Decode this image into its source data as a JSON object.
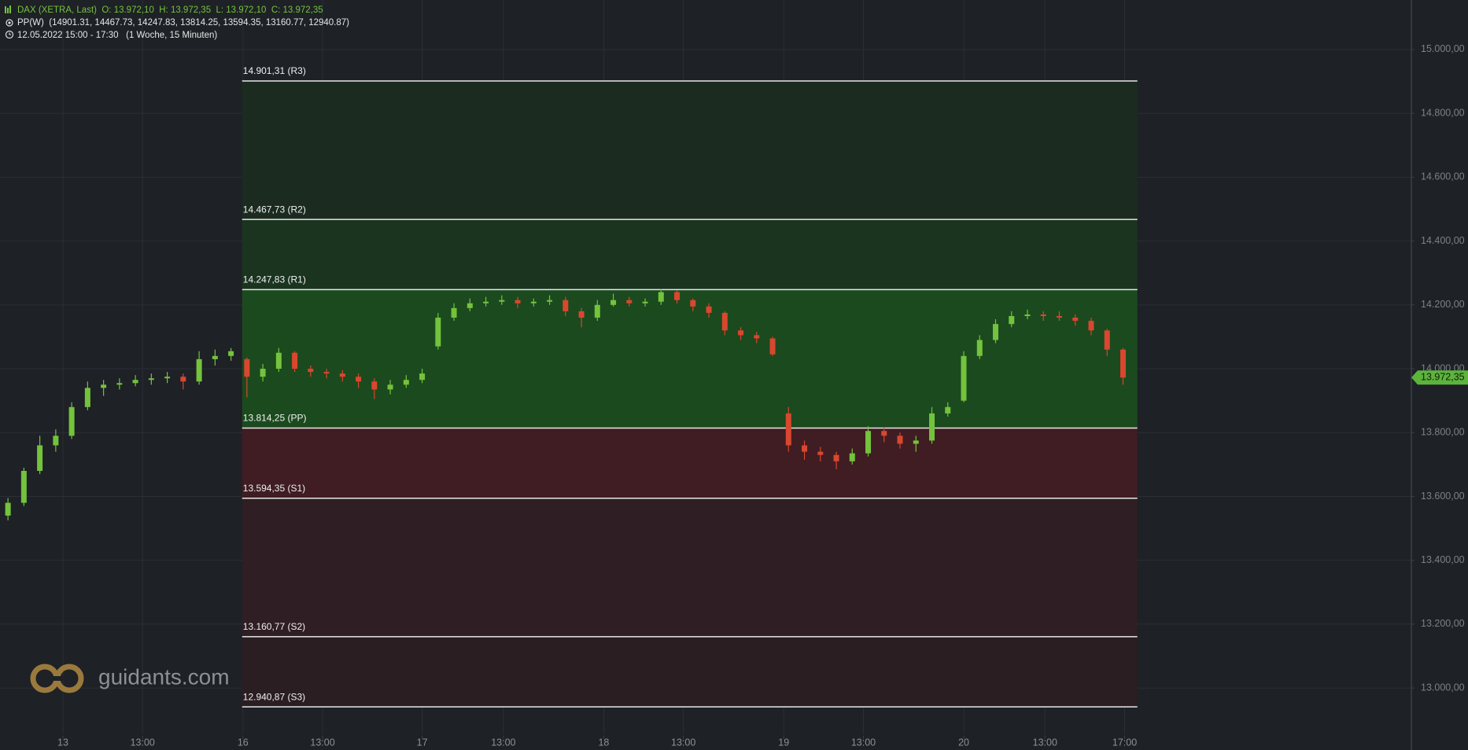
{
  "chart_data": {
    "type": "candlestick",
    "title": "DAX (XETRA, Last)  O: 13.972,10  H: 13.972,35  L: 13.972,10  C: 13.972,35",
    "indicator": "PP(W)  (14901.31, 14467.73, 14247.83, 13814.25, 13594.35, 13160.77, 12940.87)",
    "period": "12.05.2022 15:00 - 17:30   (1 Woche, 15 Minuten)",
    "watermark": "guidants.com",
    "up_color": "#74c33c",
    "down_color": "#d9472f",
    "xlim": [
      0,
      88.6
    ],
    "xticks": [
      {
        "value": 3.95,
        "label": "13"
      },
      {
        "value": 8.95,
        "label": "13:00"
      },
      {
        "value": 15.25,
        "label": "16"
      },
      {
        "value": 20.25,
        "label": "13:00"
      },
      {
        "value": 26.5,
        "label": "17"
      },
      {
        "value": 31.6,
        "label": "13:00"
      },
      {
        "value": 37.9,
        "label": "18"
      },
      {
        "value": 42.9,
        "label": "13:00"
      },
      {
        "value": 49.2,
        "label": "19"
      },
      {
        "value": 54.2,
        "label": "13:00"
      },
      {
        "value": 60.5,
        "label": "20"
      },
      {
        "value": 65.6,
        "label": "13:00"
      },
      {
        "value": 70.6,
        "label": "17:00"
      }
    ],
    "ylim": [
      12855,
      15155
    ],
    "yticks": [
      {
        "value": 13000,
        "label": "13.000,00"
      },
      {
        "value": 13200,
        "label": "13.200,00"
      },
      {
        "value": 13400,
        "label": "13.400,00"
      },
      {
        "value": 13600,
        "label": "13.600,00"
      },
      {
        "value": 13800,
        "label": "13.800,00"
      },
      {
        "value": 14000,
        "label": "14.000,00"
      },
      {
        "value": 14200,
        "label": "14.200,00"
      },
      {
        "value": 14400,
        "label": "14.400,00"
      },
      {
        "value": 14600,
        "label": "14.600,00"
      },
      {
        "value": 14800,
        "label": "14.800,00"
      },
      {
        "value": 15000,
        "label": "15.000,00"
      }
    ],
    "grid": true,
    "pivots": [
      {
        "value": 14901.31,
        "label": "14.901,31 (R3)",
        "color": "#1b2b20"
      },
      {
        "value": 14467.73,
        "label": "14.467,73 (R2)",
        "color": "#1b3420"
      },
      {
        "value": 14247.83,
        "label": "14.247,83 (R1)",
        "color": "#1b4a1e"
      },
      {
        "value": 13814.25,
        "label": "13.814,25 (PP)",
        "color": "#3f1d22"
      },
      {
        "value": 13594.35,
        "label": "13.594,35 (S1)",
        "color": "#2f1e24"
      },
      {
        "value": 13160.77,
        "label": "13.160,77 (S2)",
        "color": "#2a1e23"
      },
      {
        "value": 12940.87,
        "label": "12.940,87 (S3)"
      }
    ],
    "last_price": {
      "value": 13972.35,
      "label": "13.972,35",
      "color": "#5cb43c"
    },
    "open": [
      13540,
      13580,
      13680,
      13760,
      13790,
      13880,
      13940,
      13950,
      13955,
      13965,
      13970,
      13975,
      13960,
      14030,
      14040,
      14030,
      13975,
      14000,
      14050,
      14000,
      13990,
      13985,
      13975,
      13960,
      13935,
      13950,
      13965,
      14070,
      14160,
      14190,
      14205,
      14210,
      14215,
      14205,
      14210,
      14215,
      14180,
      14160,
      14200,
      14215,
      14205,
      14210,
      14240,
      14215,
      14195,
      14175,
      14120,
      14105,
      14095,
      13860,
      13760,
      13740,
      13730,
      13710,
      13735,
      13805,
      13790,
      13765,
      13775,
      13860,
      13900,
      14040,
      14090,
      14140,
      14165,
      14170,
      14165,
      14160,
      14150,
      14120,
      14060
    ],
    "high": [
      13595,
      13690,
      13790,
      13810,
      13895,
      13960,
      13965,
      13970,
      13980,
      13985,
      13990,
      13985,
      14055,
      14060,
      14065,
      14035,
      14015,
      14065,
      14055,
      14010,
      14000,
      13995,
      13985,
      13970,
      13965,
      13980,
      14000,
      14175,
      14205,
      14220,
      14225,
      14230,
      14225,
      14220,
      14230,
      14225,
      14190,
      14215,
      14235,
      14225,
      14220,
      14250,
      14245,
      14220,
      14205,
      14180,
      14130,
      14115,
      14100,
      13880,
      13775,
      13755,
      13740,
      13750,
      13820,
      13815,
      13800,
      13790,
      13880,
      13895,
      14055,
      14105,
      14155,
      14180,
      14185,
      14180,
      14180,
      14170,
      14160,
      14125,
      14065
    ],
    "low": [
      13525,
      13570,
      13670,
      13740,
      13780,
      13870,
      13915,
      13935,
      13945,
      13950,
      13955,
      13935,
      13950,
      14010,
      14025,
      13910,
      13960,
      13990,
      13990,
      13975,
      13970,
      13960,
      13940,
      13905,
      13920,
      13940,
      13955,
      14060,
      14150,
      14180,
      14195,
      14200,
      14190,
      14195,
      14200,
      14165,
      14130,
      14150,
      14195,
      14195,
      14195,
      14200,
      14205,
      14180,
      14160,
      14105,
      14090,
      14080,
      14040,
      13740,
      13715,
      13710,
      13685,
      13700,
      13725,
      13770,
      13750,
      13740,
      13765,
      13850,
      13895,
      14030,
      14080,
      14130,
      14155,
      14150,
      14150,
      14135,
      14105,
      14040,
      13950
    ],
    "close": [
      13580,
      13680,
      13760,
      13790,
      13880,
      13940,
      13950,
      13955,
      13965,
      13970,
      13975,
      13960,
      14030,
      14040,
      14055,
      13975,
      14000,
      14050,
      14000,
      13990,
      13985,
      13975,
      13960,
      13935,
      13950,
      13965,
      13985,
      14160,
      14190,
      14205,
      14210,
      14215,
      14205,
      14210,
      14215,
      14180,
      14160,
      14200,
      14215,
      14205,
      14210,
      14240,
      14215,
      14195,
      14175,
      14120,
      14105,
      14095,
      14045,
      13760,
      13740,
      13730,
      13710,
      13735,
      13805,
      13790,
      13765,
      13775,
      13860,
      13880,
      14040,
      14090,
      14140,
      14165,
      14170,
      14165,
      14160,
      14150,
      14120,
      14060,
      13972.35
    ]
  }
}
